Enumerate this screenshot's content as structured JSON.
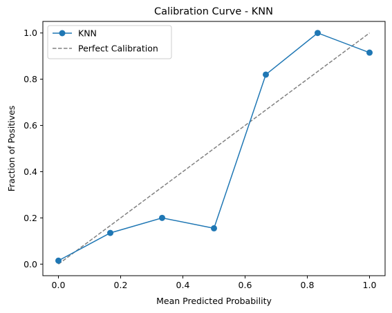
{
  "chart_data": {
    "type": "line",
    "title": "Calibration Curve - KNN",
    "xlabel": "Mean Predicted Probability",
    "ylabel": "Fraction of Positives",
    "xlim": [
      -0.05,
      1.05
    ],
    "ylim": [
      -0.05,
      1.05
    ],
    "x_ticks": [
      0.0,
      0.2,
      0.4,
      0.6,
      0.8,
      1.0
    ],
    "x_tick_labels": [
      "0.0",
      "0.2",
      "0.4",
      "0.6",
      "0.8",
      "1.0"
    ],
    "y_ticks": [
      0.0,
      0.2,
      0.4,
      0.6,
      0.8,
      1.0
    ],
    "y_tick_labels": [
      "0.0",
      "0.2",
      "0.4",
      "0.6",
      "0.8",
      "1.0"
    ],
    "grid": false,
    "legend_position": "top-left",
    "series": [
      {
        "name": "KNN",
        "style": "solid-line-with-markers",
        "color": "#1f77b4",
        "x": [
          0.0,
          0.1667,
          0.3333,
          0.5,
          0.6667,
          0.8333,
          1.0
        ],
        "y": [
          0.015,
          0.135,
          0.2,
          0.155,
          0.82,
          1.0,
          0.915
        ]
      },
      {
        "name": "Perfect Calibration",
        "style": "dashed-line",
        "color": "#808080",
        "x": [
          0.0,
          1.0
        ],
        "y": [
          0.0,
          1.0
        ]
      }
    ]
  }
}
